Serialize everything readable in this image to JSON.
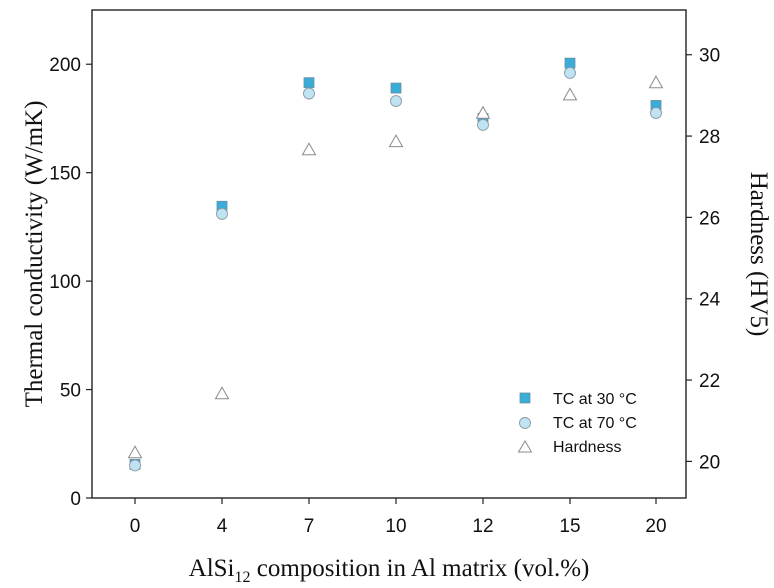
{
  "chart_data": {
    "type": "scatter",
    "categories": [
      "0",
      "4",
      "7",
      "10",
      "12",
      "15",
      "20"
    ],
    "y_left": {
      "label": "Thermal conductivity (W/mK)",
      "ticks": [
        "0",
        "50",
        "100",
        "150",
        "200"
      ],
      "lim": [
        0,
        225
      ]
    },
    "y_right": {
      "label": "Hardness (HV5)",
      "ticks": [
        "20",
        "22",
        "24",
        "26",
        "28",
        "30"
      ],
      "lim": [
        19.1,
        31.1
      ]
    },
    "xlabel": {
      "pre": "AlSi",
      "sub": "12",
      "post": " composition in Al matrix (vol.%)"
    },
    "legend_position": "lower-right",
    "series": [
      {
        "name": "TC at 30 °C",
        "axis": "left",
        "marker": "square",
        "color": "#3aacd8",
        "values": [
          15.5,
          134.5,
          191.5,
          189,
          175,
          200.5,
          181
        ]
      },
      {
        "name": "TC at 70 °C",
        "axis": "left",
        "marker": "circle",
        "color": "#bfe3f3",
        "values": [
          15,
          131,
          186.5,
          183,
          172,
          196,
          177.5
        ]
      },
      {
        "name": "Hardness",
        "axis": "right",
        "marker": "triangle",
        "color": "#ffffff",
        "values": [
          20.2,
          21.65,
          27.65,
          27.85,
          28.55,
          29.0,
          29.3
        ]
      }
    ]
  }
}
